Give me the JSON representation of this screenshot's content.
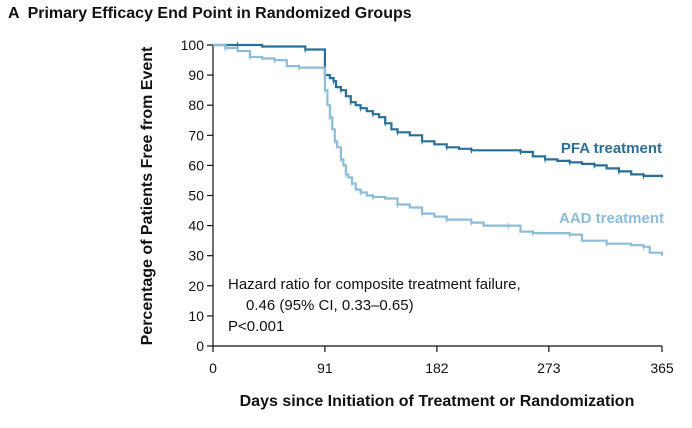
{
  "heading": {
    "letter": "A",
    "title": "Primary Efficacy End Point in Randomized Groups"
  },
  "chart_data": {
    "type": "line",
    "xlabel": "Days since Initiation of Treatment or Randomization",
    "ylabel": "Percentage of Patients Free from Event",
    "xlim": [
      0,
      365
    ],
    "ylim": [
      0,
      100
    ],
    "x_ticks": [
      0,
      91,
      182,
      273,
      365
    ],
    "y_ticks": [
      0,
      10,
      20,
      30,
      40,
      50,
      60,
      70,
      80,
      90,
      100
    ],
    "grid": false,
    "step": true,
    "series": [
      {
        "name": "PFA treatment",
        "color": "#2a6f97",
        "points": [
          [
            0,
            100
          ],
          [
            20,
            100
          ],
          [
            40,
            99.5
          ],
          [
            75,
            98.5
          ],
          [
            91,
            98.5
          ],
          [
            91,
            90
          ],
          [
            95,
            89
          ],
          [
            98,
            88
          ],
          [
            100,
            86
          ],
          [
            104,
            85
          ],
          [
            108,
            83
          ],
          [
            112,
            81
          ],
          [
            116,
            80
          ],
          [
            120,
            79
          ],
          [
            125,
            78
          ],
          [
            130,
            77
          ],
          [
            135,
            76
          ],
          [
            140,
            74
          ],
          [
            145,
            72
          ],
          [
            150,
            71
          ],
          [
            160,
            70
          ],
          [
            170,
            68
          ],
          [
            180,
            67
          ],
          [
            190,
            66
          ],
          [
            200,
            65.5
          ],
          [
            210,
            65
          ],
          [
            240,
            65
          ],
          [
            250,
            64.5
          ],
          [
            260,
            63
          ],
          [
            270,
            62
          ],
          [
            280,
            61.5
          ],
          [
            290,
            61
          ],
          [
            300,
            60.5
          ],
          [
            310,
            60
          ],
          [
            320,
            59
          ],
          [
            330,
            58
          ],
          [
            340,
            57
          ],
          [
            350,
            56.5
          ],
          [
            365,
            56
          ]
        ]
      },
      {
        "name": "AAD treatment",
        "color": "#8cbcd8",
        "points": [
          [
            0,
            100
          ],
          [
            10,
            99
          ],
          [
            20,
            98
          ],
          [
            30,
            96
          ],
          [
            40,
            95.5
          ],
          [
            50,
            95
          ],
          [
            60,
            93
          ],
          [
            70,
            92.5
          ],
          [
            91,
            92.5
          ],
          [
            91,
            85
          ],
          [
            93,
            80
          ],
          [
            95,
            76
          ],
          [
            97,
            72
          ],
          [
            99,
            68
          ],
          [
            101,
            66
          ],
          [
            104,
            62
          ],
          [
            106,
            60
          ],
          [
            108,
            57
          ],
          [
            110,
            56
          ],
          [
            113,
            54
          ],
          [
            116,
            52
          ],
          [
            120,
            51
          ],
          [
            125,
            50
          ],
          [
            130,
            49.5
          ],
          [
            140,
            49
          ],
          [
            150,
            47
          ],
          [
            160,
            46
          ],
          [
            170,
            44
          ],
          [
            180,
            43
          ],
          [
            190,
            42
          ],
          [
            200,
            42
          ],
          [
            210,
            41
          ],
          [
            220,
            40
          ],
          [
            240,
            40
          ],
          [
            250,
            38
          ],
          [
            260,
            37.5
          ],
          [
            280,
            37.5
          ],
          [
            290,
            37
          ],
          [
            300,
            35
          ],
          [
            320,
            34
          ],
          [
            340,
            33.5
          ],
          [
            350,
            33
          ],
          [
            355,
            31
          ],
          [
            365,
            30
          ]
        ]
      }
    ],
    "annotation": [
      "Hazard ratio for composite treatment failure,",
      "0.46 (95% CI, 0.33–0.65)",
      "P<0.001"
    ]
  }
}
